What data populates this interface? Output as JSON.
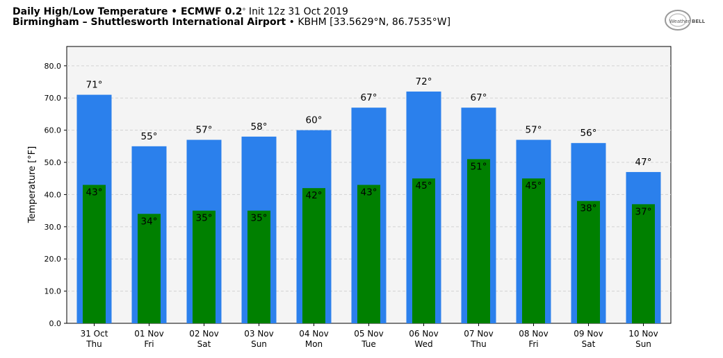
{
  "header": {
    "line1_bold": "Daily High/Low Temperature • ECMWF 0.2",
    "line1_deg": "°",
    "line1_rest": " Init 12z 31 Oct 2019",
    "line2_bold": "Birmingham – Shuttlesworth International Airport",
    "line2_rest": " • KBHM [33.5629°N, 86.7535°W]"
  },
  "logo": {
    "text_a": "Weather",
    "text_b": "BELL"
  },
  "colors": {
    "high": "#2b80ec",
    "low": "#008000",
    "plot_bg": "#f4f4f4",
    "grid": "#d2d2d2"
  },
  "chart_data": {
    "type": "bar",
    "ylabel": "Temperature [°F]",
    "ylim": [
      0,
      86
    ],
    "yticks": [
      "0.0",
      "10.0",
      "20.0",
      "30.0",
      "40.0",
      "50.0",
      "60.0",
      "70.0",
      "80.0"
    ],
    "grid": true,
    "categories": [
      [
        "31 Oct",
        "Thu"
      ],
      [
        "01 Nov",
        "Fri"
      ],
      [
        "02 Nov",
        "Sat"
      ],
      [
        "03 Nov",
        "Sun"
      ],
      [
        "04 Nov",
        "Mon"
      ],
      [
        "05 Nov",
        "Tue"
      ],
      [
        "06 Nov",
        "Wed"
      ],
      [
        "07 Nov",
        "Thu"
      ],
      [
        "08 Nov",
        "Fri"
      ],
      [
        "09 Nov",
        "Sat"
      ],
      [
        "10 Nov",
        "Sun"
      ]
    ],
    "series": [
      {
        "key": "high",
        "values": [
          71,
          55,
          57,
          58,
          60,
          67,
          72,
          67,
          57,
          56,
          47
        ],
        "labels": [
          "71°",
          "55°",
          "57°",
          "58°",
          "60°",
          "67°",
          "72°",
          "67°",
          "57°",
          "56°",
          "47°"
        ]
      },
      {
        "key": "low",
        "values": [
          43,
          34,
          35,
          35,
          42,
          43,
          45,
          51,
          45,
          38,
          37
        ],
        "labels": [
          "43°",
          "34°",
          "35°",
          "35°",
          "42°",
          "43°",
          "45°",
          "51°",
          "45°",
          "38°",
          "37°"
        ]
      }
    ]
  }
}
